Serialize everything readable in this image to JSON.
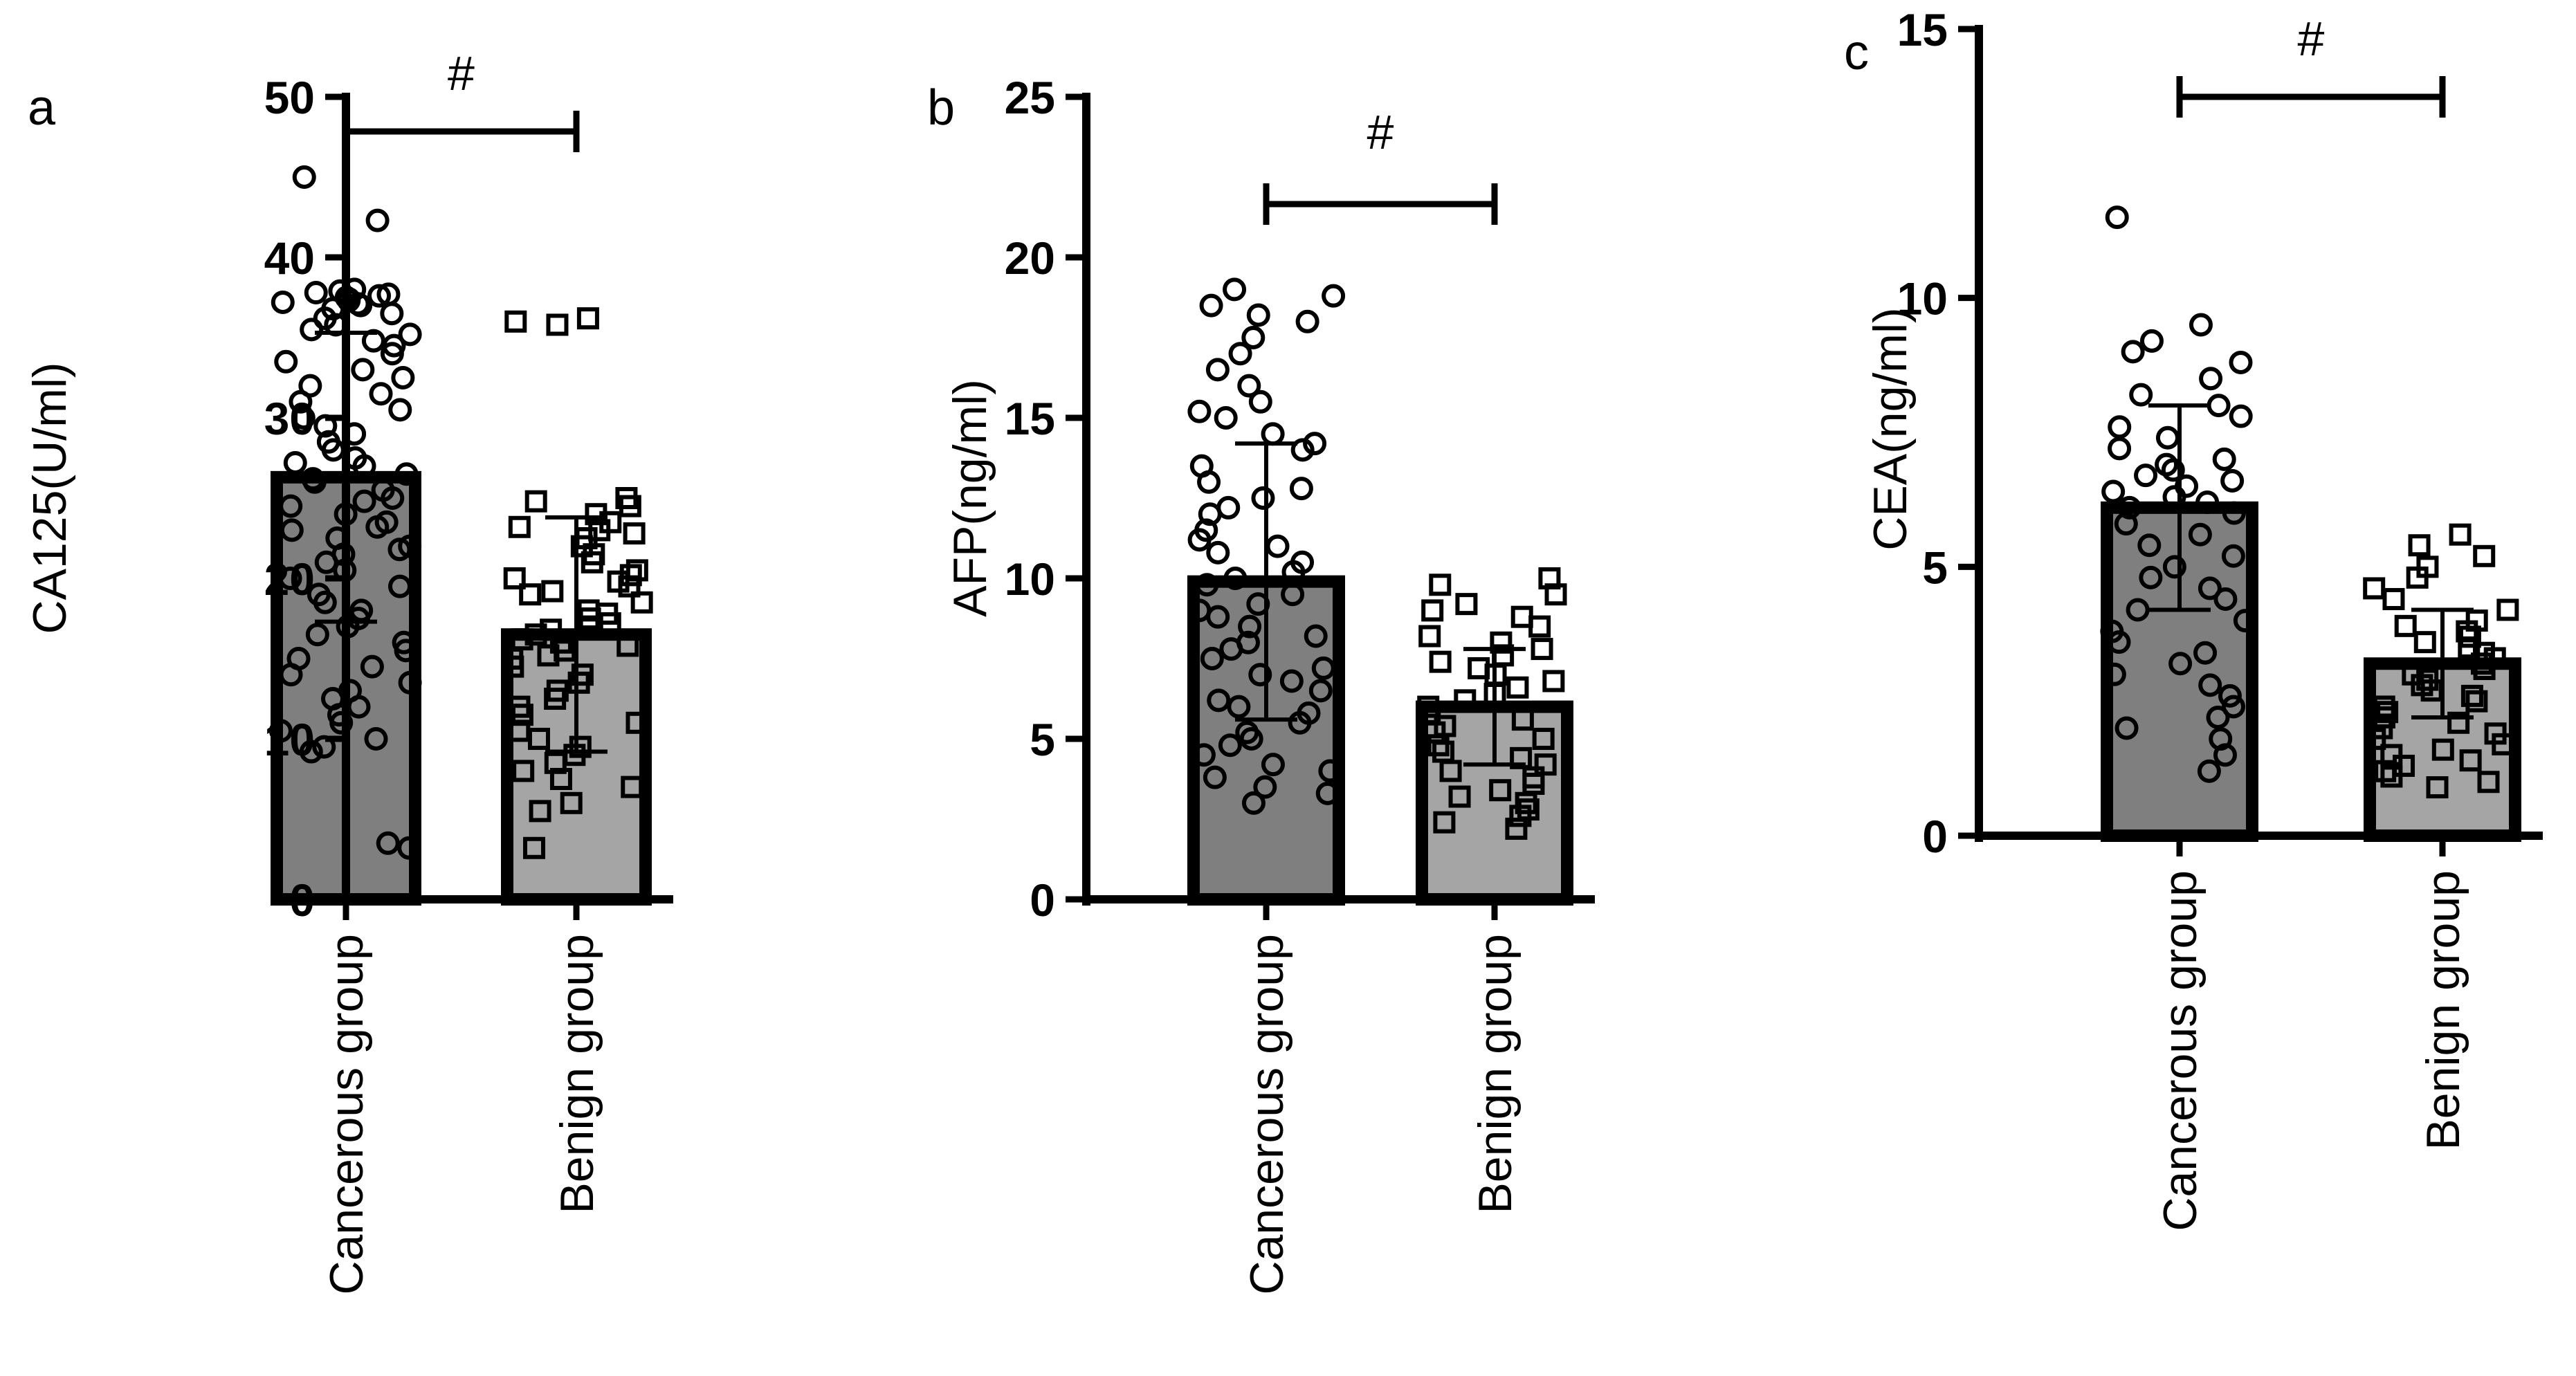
{
  "chart_data": [
    {
      "type": "bar",
      "panel_label": "a",
      "title": "",
      "xlabel": "",
      "ylabel": "CA125(U/ml)",
      "ylim": [
        0,
        50
      ],
      "yticks": [
        0,
        10,
        20,
        30,
        40,
        50
      ],
      "categories": [
        "Cancerous group",
        "Benign group"
      ],
      "values": [
        26.3,
        16.5
      ],
      "sd": [
        9.0,
        7.3
      ],
      "significance": "#",
      "colors": [
        "#7f7f7f",
        "#a5a5a5"
      ],
      "markers": [
        "circle",
        "square"
      ],
      "points": [
        [
          45,
          42.3,
          38,
          37.9,
          37.8,
          37.7,
          37.6,
          37.5,
          37.4,
          37.3,
          37.2,
          37.1,
          37.0,
          36.8,
          36.5,
          36.2,
          35.8,
          35.5,
          35.2,
          34.8,
          34.5,
          34.0,
          33.5,
          33.0,
          32.5,
          32.0,
          31.5,
          31.0,
          30.5,
          30.0,
          29.5,
          29.0,
          28.5,
          28.0,
          27.5,
          27.2,
          27.0,
          26.5,
          26.2,
          26.0,
          25.5,
          25.0,
          24.8,
          24.5,
          24.0,
          23.5,
          23.2,
          23.0,
          22.5,
          22.0,
          21.8,
          21.5,
          21.0,
          20.5,
          20.0,
          19.5,
          19.0,
          18.5,
          18.0,
          17.5,
          17.0,
          16.5,
          16.0,
          15.5,
          15.0,
          14.5,
          14.0,
          13.5,
          13.0,
          12.5,
          12.0,
          11.5,
          11.0,
          10.5,
          10.0,
          9.5,
          9.2,
          3.5,
          3.2
        ],
        [
          36.2,
          36.0,
          35.8,
          25.0,
          24.8,
          24.5,
          24.0,
          23.5,
          23.2,
          23.0,
          22.8,
          22.5,
          22.0,
          21.5,
          21.0,
          20.5,
          20.2,
          20.0,
          19.8,
          19.5,
          19.2,
          19.0,
          18.5,
          18.0,
          17.8,
          17.5,
          17.2,
          17.0,
          16.8,
          16.5,
          16.2,
          16.0,
          15.8,
          15.5,
          15.2,
          15.0,
          14.5,
          14.0,
          13.5,
          13.0,
          12.5,
          12.0,
          11.5,
          11.0,
          10.5,
          10.0,
          9.5,
          9.0,
          8.5,
          8.0,
          7.5,
          7.0,
          6.0,
          5.5,
          3.2
        ]
      ]
    },
    {
      "type": "bar",
      "panel_label": "b",
      "title": "",
      "xlabel": "",
      "ylabel": "AFP(ng/ml)",
      "ylim": [
        0,
        25
      ],
      "yticks": [
        0,
        5,
        10,
        15,
        20,
        25
      ],
      "categories": [
        "Cancerous group",
        "Benign group"
      ],
      "values": [
        9.9,
        6.0
      ],
      "sd": [
        4.3,
        1.8
      ],
      "significance": "#",
      "colors": [
        "#7f7f7f",
        "#a5a5a5"
      ],
      "markers": [
        "circle",
        "square"
      ],
      "points": [
        [
          19.0,
          18.8,
          18.5,
          18.2,
          18.0,
          17.5,
          17.0,
          16.5,
          16.0,
          15.5,
          15.2,
          15.0,
          14.5,
          14.2,
          14.0,
          13.5,
          13.0,
          12.8,
          12.5,
          12.2,
          12.0,
          11.5,
          11.2,
          11.0,
          10.8,
          10.5,
          10.2,
          10.0,
          9.8,
          9.5,
          9.2,
          9.0,
          8.8,
          8.5,
          8.2,
          8.0,
          7.8,
          7.5,
          7.2,
          7.0,
          6.8,
          6.5,
          6.2,
          6.0,
          5.8,
          5.5,
          5.2,
          5.0,
          4.8,
          4.5,
          4.2,
          4.0,
          3.8,
          3.5,
          3.3,
          3.0
        ],
        [
          10.0,
          9.8,
          9.5,
          9.2,
          9.0,
          8.8,
          8.5,
          8.2,
          8.0,
          7.8,
          7.6,
          7.4,
          7.2,
          7.0,
          6.8,
          6.6,
          6.4,
          6.2,
          6.0,
          5.8,
          5.6,
          5.4,
          5.2,
          5.0,
          4.8,
          4.6,
          4.4,
          4.2,
          4.0,
          3.8,
          3.6,
          3.4,
          3.2,
          3.0,
          2.8,
          2.6,
          2.4,
          2.2
        ]
      ]
    },
    {
      "type": "bar",
      "panel_label": "c",
      "title": "",
      "xlabel": "",
      "ylabel": "CEA(ng/ml)",
      "ylim": [
        0,
        15
      ],
      "yticks": [
        0,
        5,
        10,
        15
      ],
      "categories": [
        "Cancerous group",
        "Benign group"
      ],
      "values": [
        6.1,
        3.2
      ],
      "sd": [
        1.9,
        1.0
      ],
      "significance": "#",
      "colors": [
        "#7f7f7f",
        "#a5a5a5"
      ],
      "markers": [
        "circle",
        "square"
      ],
      "points": [
        [
          11.5,
          9.5,
          9.2,
          9.0,
          8.8,
          8.5,
          8.2,
          8.0,
          7.8,
          7.6,
          7.4,
          7.2,
          7.0,
          6.9,
          6.8,
          6.7,
          6.6,
          6.5,
          6.4,
          6.3,
          6.2,
          6.1,
          6.0,
          5.8,
          5.6,
          5.4,
          5.2,
          5.0,
          4.8,
          4.6,
          4.4,
          4.2,
          4.0,
          3.8,
          3.6,
          3.4,
          3.2,
          3.0,
          2.8,
          2.6,
          2.4,
          2.2,
          2.0,
          1.8,
          1.5,
          1.2
        ],
        [
          5.6,
          5.4,
          5.2,
          5.0,
          4.8,
          4.6,
          4.4,
          4.2,
          4.0,
          3.9,
          3.8,
          3.7,
          3.6,
          3.5,
          3.4,
          3.3,
          3.2,
          3.1,
          3.0,
          2.9,
          2.8,
          2.7,
          2.6,
          2.5,
          2.4,
          2.3,
          2.2,
          2.1,
          2.0,
          1.9,
          1.8,
          1.7,
          1.6,
          1.5,
          1.4,
          1.3,
          1.2,
          1.1,
          1.0,
          0.9
        ]
      ]
    }
  ]
}
